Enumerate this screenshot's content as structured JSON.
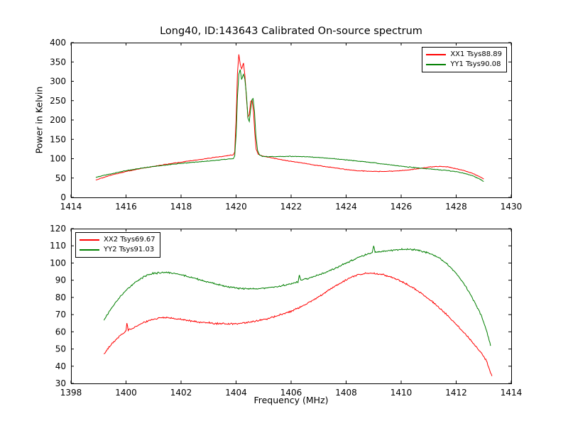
{
  "figure": {
    "title": "Long40, ID:143643 Calibrated On-source spectrum",
    "background": "#ffffff",
    "frame_color": "#000000"
  },
  "chart_data": [
    {
      "type": "line",
      "title": "",
      "xlabel": "",
      "ylabel": "Power in Kelvin",
      "xlim": [
        1414,
        1430
      ],
      "ylim": [
        0,
        400
      ],
      "xticks": [
        1414,
        1416,
        1418,
        1420,
        1422,
        1424,
        1426,
        1428,
        1430
      ],
      "yticks": [
        0,
        50,
        100,
        150,
        200,
        250,
        300,
        350,
        400
      ],
      "grid": false,
      "legend_position": "top-right",
      "series": [
        {
          "name": "XX1 Tsys88.89",
          "color": "#ff0000",
          "noise": 1.2,
          "points": [
            [
              1414.9,
              45
            ],
            [
              1415.2,
              52
            ],
            [
              1415.6,
              60
            ],
            [
              1416.0,
              67
            ],
            [
              1416.5,
              74
            ],
            [
              1417.0,
              80
            ],
            [
              1417.5,
              86
            ],
            [
              1418.0,
              91
            ],
            [
              1418.5,
              96
            ],
            [
              1419.0,
              101
            ],
            [
              1419.4,
              105
            ],
            [
              1419.7,
              108
            ],
            [
              1419.9,
              110
            ],
            [
              1419.95,
              118
            ],
            [
              1420.0,
              200
            ],
            [
              1420.05,
              320
            ],
            [
              1420.1,
              370
            ],
            [
              1420.15,
              345
            ],
            [
              1420.2,
              332
            ],
            [
              1420.27,
              348
            ],
            [
              1420.32,
              315
            ],
            [
              1420.38,
              255
            ],
            [
              1420.43,
              208
            ],
            [
              1420.48,
              215
            ],
            [
              1420.53,
              248
            ],
            [
              1420.58,
              252
            ],
            [
              1420.63,
              225
            ],
            [
              1420.68,
              165
            ],
            [
              1420.73,
              125
            ],
            [
              1420.8,
              112
            ],
            [
              1420.9,
              108
            ],
            [
              1421.0,
              106
            ],
            [
              1421.3,
              102
            ],
            [
              1421.6,
              98
            ],
            [
              1422.0,
              93
            ],
            [
              1422.4,
              89
            ],
            [
              1422.8,
              84
            ],
            [
              1423.2,
              80
            ],
            [
              1423.6,
              76
            ],
            [
              1424.0,
              72
            ],
            [
              1424.4,
              69
            ],
            [
              1424.8,
              67.5
            ],
            [
              1425.2,
              67
            ],
            [
              1425.6,
              67.5
            ],
            [
              1426.0,
              69
            ],
            [
              1426.4,
              72
            ],
            [
              1426.8,
              76
            ],
            [
              1427.1,
              79
            ],
            [
              1427.4,
              80
            ],
            [
              1427.7,
              78.5
            ],
            [
              1428.0,
              74
            ],
            [
              1428.3,
              69
            ],
            [
              1428.6,
              62
            ],
            [
              1428.9,
              52
            ],
            [
              1429.0,
              48
            ]
          ]
        },
        {
          "name": "YY1 Tsys90.08",
          "color": "#007f00",
          "noise": 1.2,
          "points": [
            [
              1414.9,
              52
            ],
            [
              1415.2,
              57
            ],
            [
              1415.6,
              63
            ],
            [
              1416.0,
              69
            ],
            [
              1416.5,
              75
            ],
            [
              1417.0,
              80
            ],
            [
              1417.5,
              84
            ],
            [
              1418.0,
              88
            ],
            [
              1418.5,
              91
            ],
            [
              1419.0,
              94
            ],
            [
              1419.4,
              97
            ],
            [
              1419.7,
              99
            ],
            [
              1419.9,
              100
            ],
            [
              1419.95,
              108
            ],
            [
              1420.0,
              160
            ],
            [
              1420.05,
              260
            ],
            [
              1420.1,
              318
            ],
            [
              1420.15,
              330
            ],
            [
              1420.2,
              305
            ],
            [
              1420.27,
              318
            ],
            [
              1420.32,
              305
            ],
            [
              1420.38,
              262
            ],
            [
              1420.43,
              205
            ],
            [
              1420.48,
              196
            ],
            [
              1420.53,
              228
            ],
            [
              1420.58,
              253
            ],
            [
              1420.62,
              255
            ],
            [
              1420.67,
              220
            ],
            [
              1420.72,
              160
            ],
            [
              1420.78,
              122
            ],
            [
              1420.85,
              110
            ],
            [
              1420.95,
              106
            ],
            [
              1421.2,
              105
            ],
            [
              1421.6,
              105.5
            ],
            [
              1422.0,
              106
            ],
            [
              1422.4,
              105.5
            ],
            [
              1422.8,
              104
            ],
            [
              1423.2,
              102
            ],
            [
              1423.6,
              99.5
            ],
            [
              1424.0,
              97
            ],
            [
              1424.4,
              94
            ],
            [
              1424.8,
              91
            ],
            [
              1425.2,
              87.5
            ],
            [
              1425.6,
              84
            ],
            [
              1426.0,
              80.5
            ],
            [
              1426.4,
              77.5
            ],
            [
              1426.8,
              75
            ],
            [
              1427.2,
              72.5
            ],
            [
              1427.6,
              70
            ],
            [
              1428.0,
              66.5
            ],
            [
              1428.3,
              62
            ],
            [
              1428.6,
              56
            ],
            [
              1428.9,
              46
            ],
            [
              1429.0,
              41
            ]
          ]
        }
      ]
    },
    {
      "type": "line",
      "title": "",
      "xlabel": "Frequency (MHz)",
      "ylabel": "",
      "xlim": [
        1398,
        1414
      ],
      "ylim": [
        30,
        120
      ],
      "xticks": [
        1398,
        1400,
        1402,
        1404,
        1406,
        1408,
        1410,
        1412,
        1414
      ],
      "yticks": [
        30,
        40,
        50,
        60,
        70,
        80,
        90,
        100,
        110,
        120
      ],
      "grid": false,
      "legend_position": "top-left",
      "series": [
        {
          "name": "XX2 Tsys69.67",
          "color": "#ff0000",
          "noise": 0.7,
          "points": [
            [
              1399.2,
              47
            ],
            [
              1399.4,
              51.5
            ],
            [
              1399.6,
              55
            ],
            [
              1399.8,
              58
            ],
            [
              1400.0,
              60.5
            ],
            [
              1400.03,
              65.5
            ],
            [
              1400.08,
              61
            ],
            [
              1400.3,
              62.5
            ],
            [
              1400.6,
              65
            ],
            [
              1400.9,
              67
            ],
            [
              1401.2,
              68
            ],
            [
              1401.5,
              68.2
            ],
            [
              1401.8,
              67.6
            ],
            [
              1402.1,
              67
            ],
            [
              1402.4,
              66.3
            ],
            [
              1402.7,
              65.7
            ],
            [
              1403.0,
              65.2
            ],
            [
              1403.3,
              64.8
            ],
            [
              1403.6,
              64.6
            ],
            [
              1403.9,
              64.7
            ],
            [
              1404.2,
              65
            ],
            [
              1404.5,
              65.6
            ],
            [
              1404.8,
              66.4
            ],
            [
              1405.1,
              67.5
            ],
            [
              1405.4,
              68.8
            ],
            [
              1405.7,
              70.3
            ],
            [
              1406.0,
              72
            ],
            [
              1406.3,
              74
            ],
            [
              1406.6,
              76.5
            ],
            [
              1406.9,
              79.3
            ],
            [
              1407.2,
              82.3
            ],
            [
              1407.5,
              85.5
            ],
            [
              1407.8,
              88.5
            ],
            [
              1408.1,
              91
            ],
            [
              1408.4,
              93
            ],
            [
              1408.7,
              94
            ],
            [
              1409.0,
              94
            ],
            [
              1409.3,
              93.3
            ],
            [
              1409.6,
              92
            ],
            [
              1409.9,
              90.2
            ],
            [
              1410.2,
              87.8
            ],
            [
              1410.5,
              85
            ],
            [
              1410.8,
              81.7
            ],
            [
              1411.1,
              78
            ],
            [
              1411.4,
              73.8
            ],
            [
              1411.7,
              69.2
            ],
            [
              1412.0,
              64.3
            ],
            [
              1412.3,
              59.2
            ],
            [
              1412.6,
              53.8
            ],
            [
              1412.9,
              48
            ],
            [
              1413.1,
              43
            ],
            [
              1413.3,
              34
            ]
          ]
        },
        {
          "name": "YY2 Tsys91.03",
          "color": "#007f00",
          "noise": 0.7,
          "points": [
            [
              1399.2,
              67
            ],
            [
              1399.4,
              72
            ],
            [
              1399.6,
              76.5
            ],
            [
              1399.8,
              80.5
            ],
            [
              1400.0,
              84
            ],
            [
              1400.2,
              87
            ],
            [
              1400.4,
              89.5
            ],
            [
              1400.6,
              91.5
            ],
            [
              1400.8,
              93
            ],
            [
              1401.0,
              94
            ],
            [
              1401.3,
              94.5
            ],
            [
              1401.6,
              94.3
            ],
            [
              1401.9,
              93.5
            ],
            [
              1402.2,
              92.3
            ],
            [
              1402.5,
              91
            ],
            [
              1402.8,
              89.7
            ],
            [
              1403.1,
              88.4
            ],
            [
              1403.4,
              87.2
            ],
            [
              1403.7,
              86.2
            ],
            [
              1404.0,
              85.5
            ],
            [
              1404.3,
              85.1
            ],
            [
              1404.6,
              85
            ],
            [
              1404.9,
              85.2
            ],
            [
              1405.2,
              85.7
            ],
            [
              1405.5,
              86.3
            ],
            [
              1405.8,
              87.2
            ],
            [
              1406.1,
              88.3
            ],
            [
              1406.25,
              89
            ],
            [
              1406.3,
              93
            ],
            [
              1406.35,
              90
            ],
            [
              1406.6,
              91
            ],
            [
              1406.9,
              92.5
            ],
            [
              1407.2,
              94.2
            ],
            [
              1407.5,
              96.2
            ],
            [
              1407.8,
              98.4
            ],
            [
              1408.1,
              100.7
            ],
            [
              1408.4,
              102.9
            ],
            [
              1408.7,
              104.8
            ],
            [
              1408.95,
              106
            ],
            [
              1409.0,
              110.5
            ],
            [
              1409.05,
              106.3
            ],
            [
              1409.3,
              106.8
            ],
            [
              1409.6,
              107.3
            ],
            [
              1409.9,
              107.8
            ],
            [
              1410.2,
              108
            ],
            [
              1410.5,
              107.7
            ],
            [
              1410.8,
              106.8
            ],
            [
              1411.1,
              105.2
            ],
            [
              1411.4,
              102.7
            ],
            [
              1411.7,
              99
            ],
            [
              1412.0,
              94
            ],
            [
              1412.3,
              87.5
            ],
            [
              1412.6,
              79.5
            ],
            [
              1412.9,
              70
            ],
            [
              1413.1,
              61
            ],
            [
              1413.25,
              52
            ]
          ]
        }
      ]
    }
  ]
}
